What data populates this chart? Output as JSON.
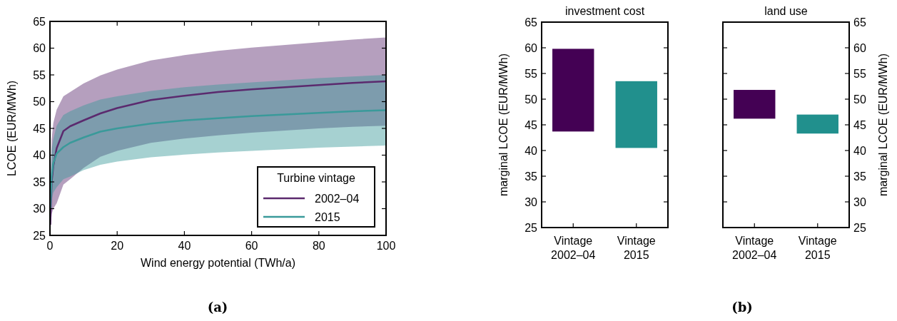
{
  "chart_data": [
    {
      "type": "line",
      "xlabel": "Wind energy potential (TWh/a)",
      "ylabel": "LCOE (EUR/MWh)",
      "legend_title": "Turbine vintage",
      "legend": "bottom right",
      "x": [
        0.1,
        0.5,
        1,
        2,
        4,
        6,
        10,
        15,
        20,
        30,
        40,
        50,
        60,
        70,
        80,
        90,
        100
      ],
      "series": [
        {
          "name": "2002–04",
          "color": "#5b2a6e",
          "values": [
            27,
            35,
            38,
            41.3,
            44.5,
            45.4,
            46.5,
            47.8,
            48.8,
            50.3,
            51.1,
            51.8,
            52.3,
            52.7,
            53.1,
            53.5,
            53.8
          ],
          "lower": [
            25.5,
            29,
            30,
            31,
            34.5,
            35.5,
            37.6,
            39.7,
            40.8,
            42.3,
            43.1,
            43.7,
            44.2,
            44.6,
            45,
            45.3,
            45.5
          ],
          "upper": [
            33,
            43,
            46,
            48.5,
            51,
            51.8,
            53.4,
            54.9,
            56,
            57.7,
            58.7,
            59.5,
            60.1,
            60.6,
            61.1,
            61.6,
            62
          ]
        },
        {
          "name": "2015",
          "color": "#3a9a9a",
          "values": [
            30,
            36,
            38.5,
            40.3,
            41.5,
            42.3,
            43.3,
            44.4,
            45,
            45.9,
            46.5,
            46.9,
            47.3,
            47.6,
            47.9,
            48.2,
            48.4
          ],
          "lower": [
            28,
            31.5,
            33,
            34,
            35.5,
            36,
            37.2,
            38.2,
            38.8,
            39.6,
            40.1,
            40.5,
            40.8,
            41.1,
            41.4,
            41.6,
            41.8
          ],
          "upper": [
            34,
            41,
            43,
            45.5,
            47.5,
            48.2,
            49.3,
            50.4,
            51,
            52,
            52.7,
            53.2,
            53.6,
            54,
            54.4,
            54.7,
            55
          ]
        }
      ],
      "xlim": [
        0,
        100
      ],
      "xticks": [
        0,
        20,
        40,
        60,
        80,
        100
      ],
      "ylim": [
        25,
        65
      ],
      "yticks": [
        25,
        30,
        35,
        40,
        45,
        50,
        55,
        60,
        65
      ],
      "annotations": [
        "(a)"
      ]
    },
    {
      "type": "bar",
      "title": "investment cost",
      "ylabel": "marginal LCOE (EUR/MWh)",
      "categories": [
        "Vintage\n2002–04",
        "Vintage\n2015"
      ],
      "values": [
        16.1,
        13
      ],
      "base": [
        43.7,
        40.5
      ],
      "colors": [
        "#440154",
        "#21908d"
      ],
      "ylim": [
        25,
        65
      ],
      "yticks": [
        25,
        30,
        35,
        40,
        45,
        50,
        55,
        60,
        65
      ],
      "annotations": [
        "(b)"
      ]
    },
    {
      "type": "bar",
      "title": "land use",
      "y2label": "marginal LCOE (EUR/MWh)",
      "categories": [
        "Vintage\n2002–04",
        "Vintage\n2015"
      ],
      "series": [
        {
          "axis": "y2",
          "values": [
            5.6,
            3.7
          ],
          "base": [
            46.2,
            43.3
          ],
          "colors": [
            "#440154",
            "#21908d"
          ]
        }
      ],
      "y2lim": [
        25,
        65
      ],
      "y2ticks": [
        25,
        30,
        35,
        40,
        45,
        50,
        55,
        60,
        65
      ]
    }
  ]
}
